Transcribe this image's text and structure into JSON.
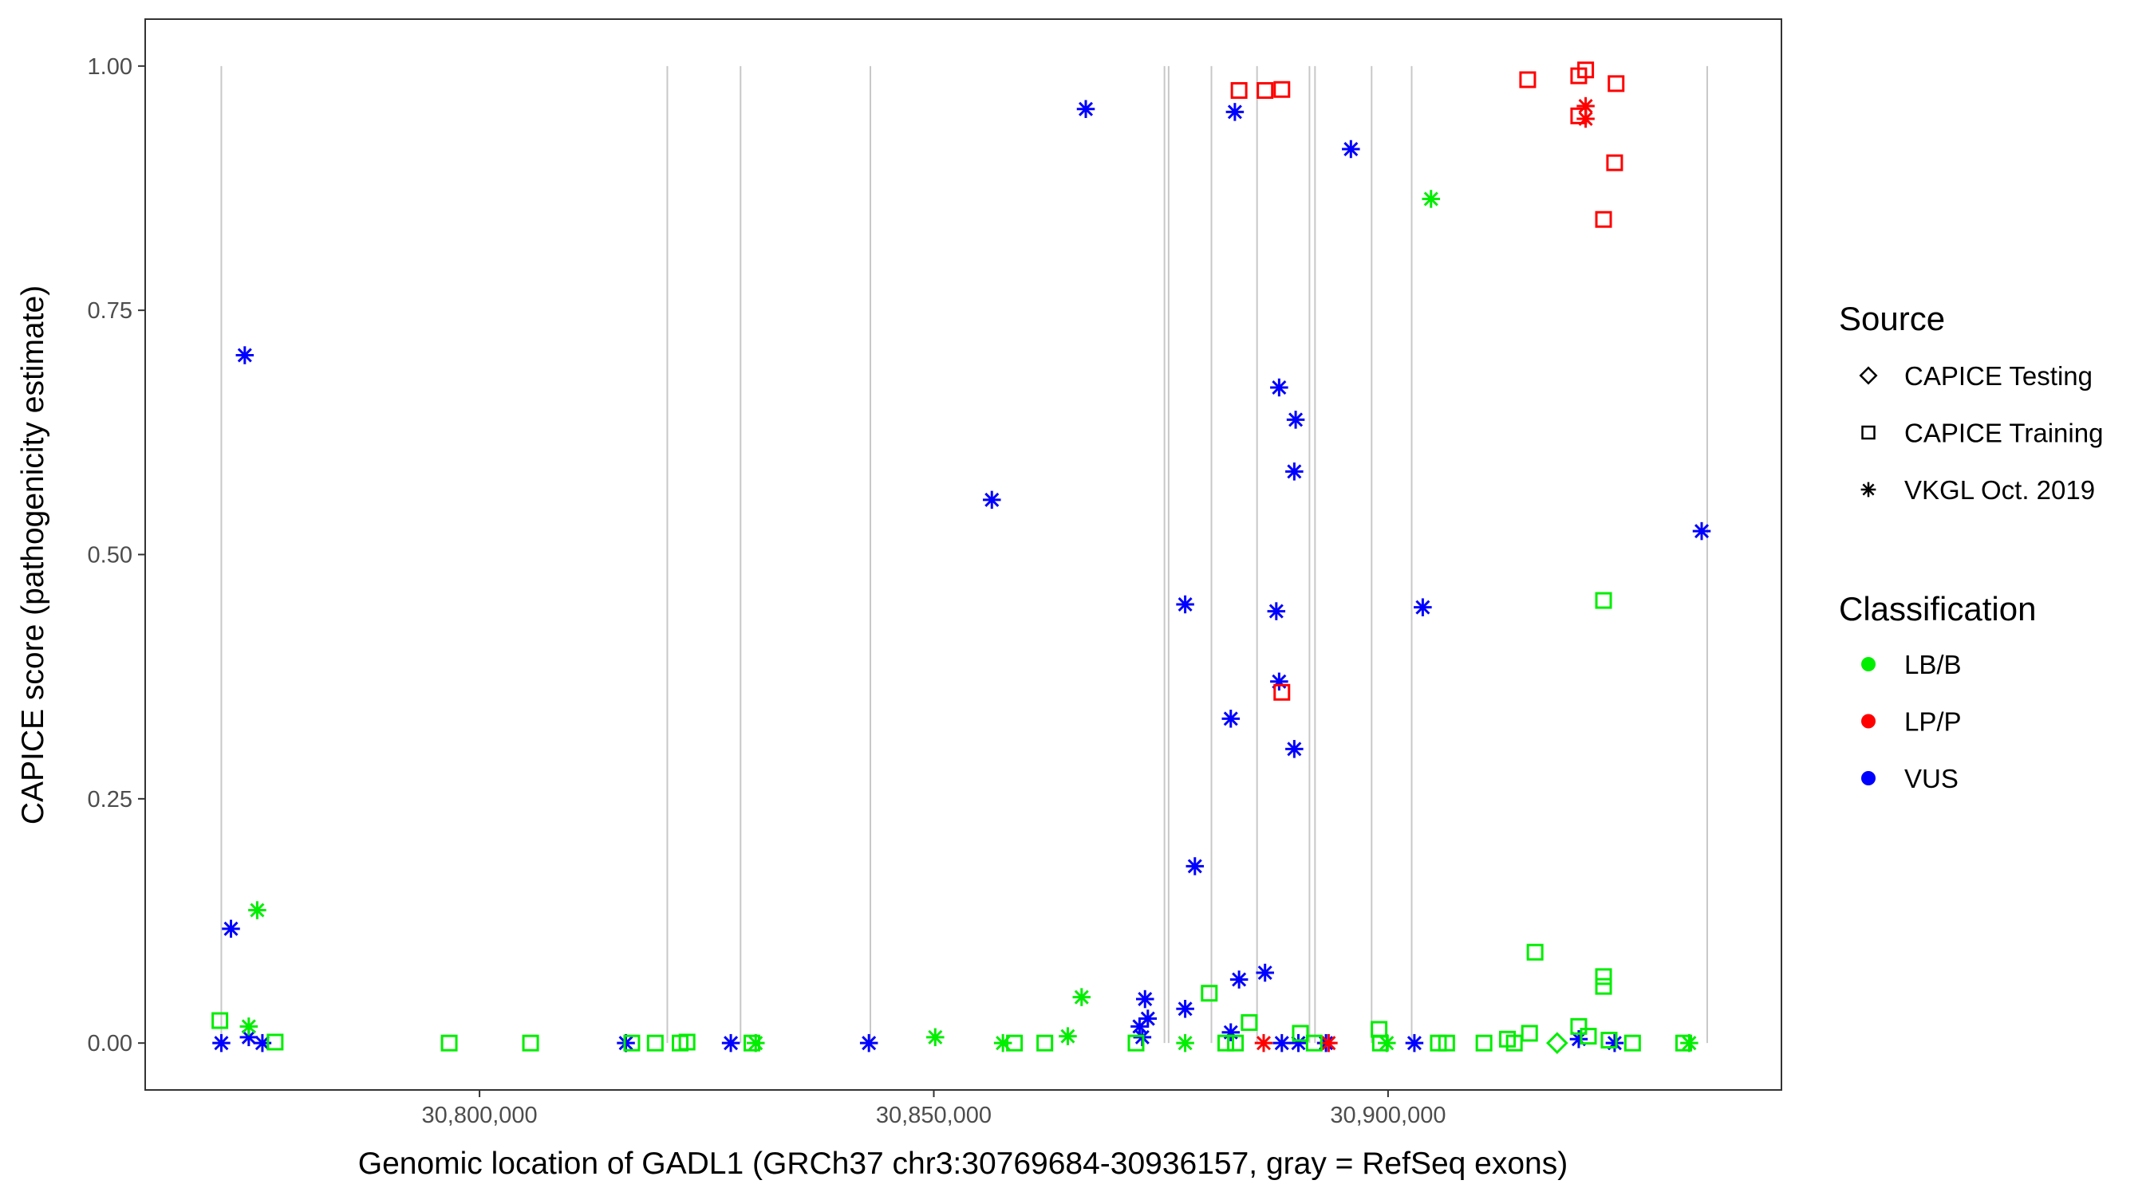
{
  "chart_data": {
    "type": "scatter",
    "xlabel": "Genomic location of GADL1 (GRCh37 chr3:30769684-30936157, gray = RefSeq exons)",
    "ylabel": "CAPICE score (pathogenicity estimate)",
    "xlim": [
      30763200,
      30943300
    ],
    "ylim": [
      -0.048,
      1.048
    ],
    "x_ticks": [
      30800000,
      30850000,
      30900000
    ],
    "x_tick_labels": [
      "30,800,000",
      "30,850,000",
      "30,900,000"
    ],
    "y_ticks": [
      0,
      0.25,
      0.5,
      0.75,
      1.0
    ],
    "y_tick_labels": [
      "0.00",
      "0.25",
      "0.50",
      "0.75",
      "1.00"
    ],
    "grid": false,
    "exon_lines": [
      30771580,
      30820670,
      30828730,
      30843020,
      30875390,
      30875850,
      30880560,
      30885580,
      30891350,
      30891960,
      30898190,
      30902600,
      30935130
    ],
    "exon_line_color": "#c8c8c8",
    "legend_placement": "right",
    "legend": {
      "source_title": "Source",
      "source_items": [
        {
          "label": "CAPICE Testing",
          "shape": "diamond"
        },
        {
          "label": "CAPICE Training",
          "shape": "square"
        },
        {
          "label": "VKGL Oct. 2019",
          "shape": "asterisk"
        }
      ],
      "class_title": "Classification",
      "class_items": [
        {
          "label": "LB/B",
          "color": "#00ee00"
        },
        {
          "label": "LP/P",
          "color": "#ff0000"
        },
        {
          "label": "VUS",
          "color": "#0000ff"
        }
      ]
    },
    "points": [
      {
        "x": 30774160,
        "y": 0.704,
        "source": "VKGL Oct. 2019",
        "class": "VUS"
      },
      {
        "x": 30772640,
        "y": 0.117,
        "source": "VKGL Oct. 2019",
        "class": "VUS"
      },
      {
        "x": 30771580,
        "y": 0.0,
        "source": "VKGL Oct. 2019",
        "class": "VUS"
      },
      {
        "x": 30774600,
        "y": 0.006,
        "source": "VKGL Oct. 2019",
        "class": "VUS"
      },
      {
        "x": 30776100,
        "y": 0.0,
        "source": "VKGL Oct. 2019",
        "class": "VUS"
      },
      {
        "x": 30816110,
        "y": 0.0,
        "source": "VKGL Oct. 2019",
        "class": "VUS"
      },
      {
        "x": 30827660,
        "y": 0.0,
        "source": "VKGL Oct. 2019",
        "class": "VUS"
      },
      {
        "x": 30842860,
        "y": 0.0,
        "source": "VKGL Oct. 2019",
        "class": "VUS"
      },
      {
        "x": 30856390,
        "y": 0.556,
        "source": "VKGL Oct. 2019",
        "class": "VUS"
      },
      {
        "x": 30866730,
        "y": 0.956,
        "source": "VKGL Oct. 2019",
        "class": "VUS"
      },
      {
        "x": 30883140,
        "y": 0.953,
        "source": "VKGL Oct. 2019",
        "class": "VUS"
      },
      {
        "x": 30895910,
        "y": 0.915,
        "source": "VKGL Oct. 2019",
        "class": "VUS"
      },
      {
        "x": 30888010,
        "y": 0.671,
        "source": "VKGL Oct. 2019",
        "class": "VUS"
      },
      {
        "x": 30889830,
        "y": 0.638,
        "source": "VKGL Oct. 2019",
        "class": "VUS"
      },
      {
        "x": 30889680,
        "y": 0.585,
        "source": "VKGL Oct. 2019",
        "class": "VUS"
      },
      {
        "x": 30877670,
        "y": 0.449,
        "source": "VKGL Oct. 2019",
        "class": "VUS"
      },
      {
        "x": 30887700,
        "y": 0.442,
        "source": "VKGL Oct. 2019",
        "class": "VUS"
      },
      {
        "x": 30888010,
        "y": 0.37,
        "source": "VKGL Oct. 2019",
        "class": "VUS"
      },
      {
        "x": 30882690,
        "y": 0.332,
        "source": "VKGL Oct. 2019",
        "class": "VUS"
      },
      {
        "x": 30889680,
        "y": 0.301,
        "source": "VKGL Oct. 2019",
        "class": "VUS"
      },
      {
        "x": 30878740,
        "y": 0.181,
        "source": "VKGL Oct. 2019",
        "class": "VUS"
      },
      {
        "x": 30903820,
        "y": 0.446,
        "source": "VKGL Oct. 2019",
        "class": "VUS"
      },
      {
        "x": 30934520,
        "y": 0.524,
        "source": "VKGL Oct. 2019",
        "class": "VUS"
      },
      {
        "x": 30886460,
        "y": 0.072,
        "source": "VKGL Oct. 2019",
        "class": "VUS"
      },
      {
        "x": 30883600,
        "y": 0.065,
        "source": "VKGL Oct. 2019",
        "class": "VUS"
      },
      {
        "x": 30873250,
        "y": 0.045,
        "source": "VKGL Oct. 2019",
        "class": "VUS"
      },
      {
        "x": 30877670,
        "y": 0.035,
        "source": "VKGL Oct. 2019",
        "class": "VUS"
      },
      {
        "x": 30873560,
        "y": 0.025,
        "source": "VKGL Oct. 2019",
        "class": "VUS"
      },
      {
        "x": 30872650,
        "y": 0.017,
        "source": "VKGL Oct. 2019",
        "class": "VUS"
      },
      {
        "x": 30872950,
        "y": 0.006,
        "source": "VKGL Oct. 2019",
        "class": "VUS"
      },
      {
        "x": 30882690,
        "y": 0.011,
        "source": "VKGL Oct. 2019",
        "class": "VUS"
      },
      {
        "x": 30888310,
        "y": 0.0,
        "source": "VKGL Oct. 2019",
        "class": "VUS"
      },
      {
        "x": 30890130,
        "y": 0.0,
        "source": "VKGL Oct. 2019",
        "class": "VUS"
      },
      {
        "x": 30893170,
        "y": 0.0,
        "source": "VKGL Oct. 2019",
        "class": "VUS"
      },
      {
        "x": 30902900,
        "y": 0.0,
        "source": "VKGL Oct. 2019",
        "class": "VUS"
      },
      {
        "x": 30920990,
        "y": 0.004,
        "source": "VKGL Oct. 2019",
        "class": "VUS"
      },
      {
        "x": 30924940,
        "y": 0.0,
        "source": "VKGL Oct. 2019",
        "class": "VUS"
      },
      {
        "x": 30883600,
        "y": 0.975,
        "source": "CAPICE Training",
        "class": "LP/P"
      },
      {
        "x": 30886460,
        "y": 0.975,
        "source": "CAPICE Training",
        "class": "LP/P"
      },
      {
        "x": 30888310,
        "y": 0.976,
        "source": "CAPICE Training",
        "class": "LP/P"
      },
      {
        "x": 30915370,
        "y": 0.986,
        "source": "CAPICE Training",
        "class": "LP/P"
      },
      {
        "x": 30920990,
        "y": 0.99,
        "source": "CAPICE Training",
        "class": "LP/P"
      },
      {
        "x": 30921750,
        "y": 0.996,
        "source": "CAPICE Training",
        "class": "LP/P"
      },
      {
        "x": 30925100,
        "y": 0.982,
        "source": "CAPICE Training",
        "class": "LP/P"
      },
      {
        "x": 30920990,
        "y": 0.949,
        "source": "CAPICE Training",
        "class": "LP/P"
      },
      {
        "x": 30924940,
        "y": 0.901,
        "source": "CAPICE Training",
        "class": "LP/P"
      },
      {
        "x": 30923720,
        "y": 0.843,
        "source": "CAPICE Training",
        "class": "LP/P"
      },
      {
        "x": 30888310,
        "y": 0.359,
        "source": "CAPICE Training",
        "class": "LP/P"
      },
      {
        "x": 30921750,
        "y": 0.959,
        "source": "VKGL Oct. 2019",
        "class": "LP/P"
      },
      {
        "x": 30921750,
        "y": 0.946,
        "source": "VKGL Oct. 2019",
        "class": "LP/P"
      },
      {
        "x": 30886310,
        "y": 0.0,
        "source": "VKGL Oct. 2019",
        "class": "LP/P"
      },
      {
        "x": 30893460,
        "y": 0.0,
        "source": "VKGL Oct. 2019",
        "class": "LP/P"
      },
      {
        "x": 30775530,
        "y": 0.136,
        "source": "VKGL Oct. 2019",
        "class": "LB/B"
      },
      {
        "x": 30774600,
        "y": 0.017,
        "source": "VKGL Oct. 2019",
        "class": "LB/B"
      },
      {
        "x": 30904730,
        "y": 0.864,
        "source": "VKGL Oct. 2019",
        "class": "LB/B"
      },
      {
        "x": 30866270,
        "y": 0.047,
        "source": "VKGL Oct. 2019",
        "class": "LB/B"
      },
      {
        "x": 30864750,
        "y": 0.007,
        "source": "VKGL Oct. 2019",
        "class": "LB/B"
      },
      {
        "x": 30850160,
        "y": 0.006,
        "source": "VKGL Oct. 2019",
        "class": "LB/B"
      },
      {
        "x": 30857610,
        "y": 0.0,
        "source": "VKGL Oct. 2019",
        "class": "LB/B"
      },
      {
        "x": 30830400,
        "y": 0.0,
        "source": "VKGL Oct. 2019",
        "class": "LB/B"
      },
      {
        "x": 30877670,
        "y": 0.0,
        "source": "VKGL Oct. 2019",
        "class": "LB/B"
      },
      {
        "x": 30899860,
        "y": 0.0,
        "source": "VKGL Oct. 2019",
        "class": "LB/B"
      },
      {
        "x": 30933150,
        "y": 0.0,
        "source": "VKGL Oct. 2019",
        "class": "LB/B"
      },
      {
        "x": 30771420,
        "y": 0.023,
        "source": "CAPICE Training",
        "class": "LB/B"
      },
      {
        "x": 30777500,
        "y": 0.001,
        "source": "CAPICE Training",
        "class": "LB/B"
      },
      {
        "x": 30796660,
        "y": 0.0,
        "source": "CAPICE Training",
        "class": "LB/B"
      },
      {
        "x": 30805620,
        "y": 0.0,
        "source": "CAPICE Training",
        "class": "LB/B"
      },
      {
        "x": 30816760,
        "y": 0.0,
        "source": "CAPICE Training",
        "class": "LB/B"
      },
      {
        "x": 30819340,
        "y": 0.0,
        "source": "CAPICE Training",
        "class": "LB/B"
      },
      {
        "x": 30822080,
        "y": 0.0,
        "source": "CAPICE Training",
        "class": "LB/B"
      },
      {
        "x": 30822840,
        "y": 0.001,
        "source": "CAPICE Training",
        "class": "LB/B"
      },
      {
        "x": 30829980,
        "y": 0.0,
        "source": "CAPICE Training",
        "class": "LB/B"
      },
      {
        "x": 30858880,
        "y": 0.0,
        "source": "CAPICE Training",
        "class": "LB/B"
      },
      {
        "x": 30862220,
        "y": 0.0,
        "source": "CAPICE Training",
        "class": "LB/B"
      },
      {
        "x": 30872260,
        "y": 0.0,
        "source": "CAPICE Training",
        "class": "LB/B"
      },
      {
        "x": 30880320,
        "y": 0.051,
        "source": "CAPICE Training",
        "class": "LB/B"
      },
      {
        "x": 30882140,
        "y": 0.0,
        "source": "CAPICE Training",
        "class": "LB/B"
      },
      {
        "x": 30883200,
        "y": 0.0,
        "source": "CAPICE Training",
        "class": "LB/B"
      },
      {
        "x": 30884720,
        "y": 0.021,
        "source": "CAPICE Training",
        "class": "LB/B"
      },
      {
        "x": 30890350,
        "y": 0.01,
        "source": "CAPICE Training",
        "class": "LB/B"
      },
      {
        "x": 30891870,
        "y": 0.0,
        "source": "CAPICE Training",
        "class": "LB/B"
      },
      {
        "x": 30899010,
        "y": 0.014,
        "source": "CAPICE Training",
        "class": "LB/B"
      },
      {
        "x": 30899160,
        "y": 0.0,
        "source": "CAPICE Training",
        "class": "LB/B"
      },
      {
        "x": 30905540,
        "y": 0.0,
        "source": "CAPICE Training",
        "class": "LB/B"
      },
      {
        "x": 30906450,
        "y": 0.0,
        "source": "CAPICE Training",
        "class": "LB/B"
      },
      {
        "x": 30910560,
        "y": 0.0,
        "source": "CAPICE Training",
        "class": "LB/B"
      },
      {
        "x": 30913140,
        "y": 0.004,
        "source": "CAPICE Training",
        "class": "LB/B"
      },
      {
        "x": 30913900,
        "y": 0.0,
        "source": "CAPICE Training",
        "class": "LB/B"
      },
      {
        "x": 30915570,
        "y": 0.01,
        "source": "CAPICE Training",
        "class": "LB/B"
      },
      {
        "x": 30916180,
        "y": 0.093,
        "source": "CAPICE Training",
        "class": "LB/B"
      },
      {
        "x": 30920990,
        "y": 0.017,
        "source": "CAPICE Training",
        "class": "LB/B"
      },
      {
        "x": 30923720,
        "y": 0.068,
        "source": "CAPICE Training",
        "class": "LB/B"
      },
      {
        "x": 30923720,
        "y": 0.058,
        "source": "CAPICE Training",
        "class": "LB/B"
      },
      {
        "x": 30923720,
        "y": 0.453,
        "source": "CAPICE Training",
        "class": "LB/B"
      },
      {
        "x": 30922050,
        "y": 0.007,
        "source": "CAPICE Training",
        "class": "LB/B"
      },
      {
        "x": 30924330,
        "y": 0.003,
        "source": "CAPICE Training",
        "class": "LB/B"
      },
      {
        "x": 30926910,
        "y": 0.0,
        "source": "CAPICE Training",
        "class": "LB/B"
      },
      {
        "x": 30932540,
        "y": 0.0,
        "source": "CAPICE Training",
        "class": "LB/B"
      },
      {
        "x": 30918610,
        "y": 0.0,
        "source": "CAPICE Testing",
        "class": "LB/B"
      }
    ]
  }
}
